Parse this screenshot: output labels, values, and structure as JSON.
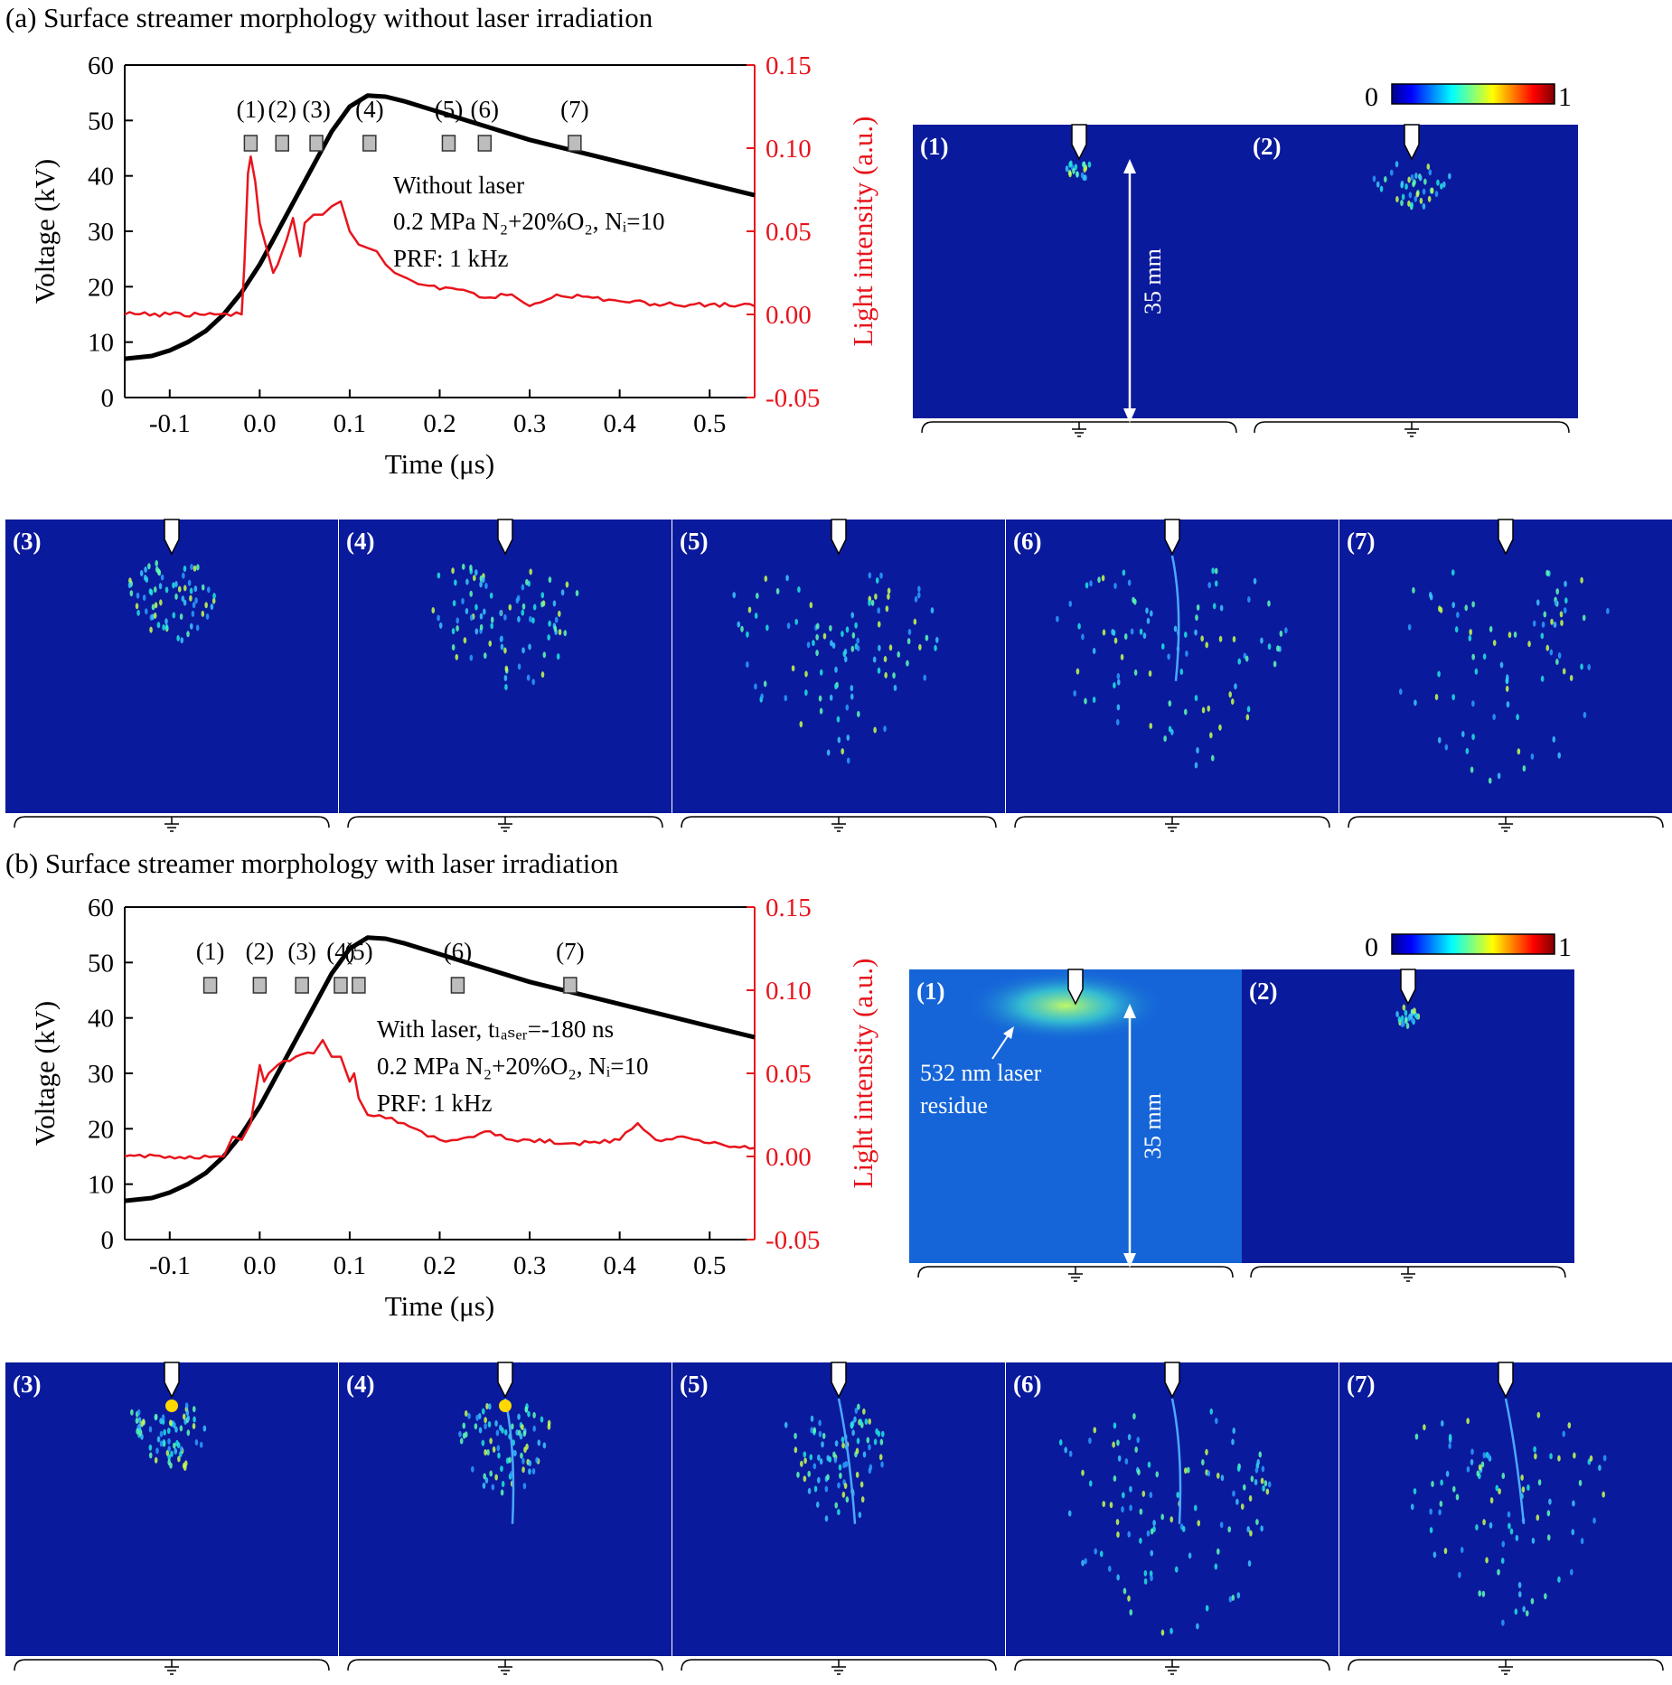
{
  "colors": {
    "voltage": "#000000",
    "light": "#e8141c",
    "frame_bg": "#0a1a9c",
    "laser_bg": "#1565d8"
  },
  "colorbar": {
    "min": "0",
    "max": "1"
  },
  "marker_labels": [
    "(1)",
    "(2)",
    "(3)",
    "(4)",
    "(5)",
    "(6)",
    "(7)"
  ],
  "frame_labels": [
    "(1)",
    "(2)",
    "(3)",
    "(4)",
    "(5)",
    "(6)",
    "(7)"
  ],
  "scale_label": "35 mm",
  "laser_annotation": [
    "532 nm laser",
    "residue"
  ],
  "panels": [
    {
      "title": "(a) Surface streamer morphology without laser irradiation",
      "notes": [
        "Without laser",
        "0.2 MPa N₂+20%O₂, Nᵢ=10",
        "PRF: 1 kHz"
      ]
    },
    {
      "title": "(b) Surface streamer morphology with laser irradiation",
      "notes": [
        "With laser, tₗₐₛₑᵣ=-180 ns",
        "0.2 MPa N₂+20%O₂, Nᵢ=10",
        "PRF: 1 kHz"
      ]
    }
  ],
  "chart_data": [
    {
      "type": "line",
      "title": "(a) Surface streamer morphology without laser irradiation",
      "xlabel": "Time (μs)",
      "ylabel": "Voltage (kV)",
      "y2label": "Light intensity (a.u.)",
      "xlim": [
        -0.15,
        0.55
      ],
      "ylim": [
        0,
        60
      ],
      "y2lim": [
        -0.05,
        0.15
      ],
      "xticks": [
        "-0.1",
        "0.0",
        "0.1",
        "0.2",
        "0.3",
        "0.4",
        "0.5"
      ],
      "yticks": [
        "0",
        "10",
        "20",
        "30",
        "40",
        "50",
        "60"
      ],
      "y2ticks": [
        "-0.05",
        "0.00",
        "0.05",
        "0.10",
        "0.15"
      ],
      "frame_times": [
        -0.01,
        0.025,
        0.063,
        0.122,
        0.21,
        0.25,
        0.35
      ],
      "series": [
        {
          "axis": "left",
          "x": [
            -0.15,
            -0.12,
            -0.1,
            -0.08,
            -0.06,
            -0.04,
            -0.02,
            0.0,
            0.02,
            0.04,
            0.06,
            0.08,
            0.1,
            0.12,
            0.14,
            0.16,
            0.2,
            0.25,
            0.3,
            0.35,
            0.4,
            0.45,
            0.5,
            0.55
          ],
          "y": [
            7,
            7.5,
            8.5,
            10,
            12,
            15,
            19,
            24,
            30,
            36,
            42,
            48,
            52.5,
            54.5,
            54.3,
            53.5,
            51.5,
            49,
            46.5,
            44.5,
            42.5,
            40.5,
            38.5,
            36.5
          ]
        },
        {
          "axis": "right",
          "x": [
            -0.15,
            -0.1,
            -0.05,
            -0.02,
            -0.017,
            -0.013,
            -0.01,
            -0.005,
            0.0,
            0.01,
            0.015,
            0.02,
            0.03,
            0.037,
            0.045,
            0.05,
            0.06,
            0.07,
            0.08,
            0.09,
            0.1,
            0.11,
            0.12,
            0.13,
            0.14,
            0.15,
            0.17,
            0.2,
            0.22,
            0.25,
            0.28,
            0.3,
            0.33,
            0.37,
            0.4,
            0.45,
            0.5,
            0.55
          ],
          "y": [
            0.0,
            0.0,
            0.0,
            0.0,
            0.03,
            0.085,
            0.095,
            0.08,
            0.055,
            0.035,
            0.025,
            0.03,
            0.045,
            0.058,
            0.035,
            0.055,
            0.06,
            0.06,
            0.065,
            0.068,
            0.05,
            0.042,
            0.04,
            0.038,
            0.03,
            0.025,
            0.02,
            0.015,
            0.015,
            0.01,
            0.012,
            0.005,
            0.012,
            0.01,
            0.008,
            0.006,
            0.006,
            0.005
          ]
        }
      ]
    },
    {
      "type": "line",
      "title": "(b) Surface streamer morphology with laser irradiation",
      "xlabel": "Time (μs)",
      "ylabel": "Voltage (kV)",
      "y2label": "Light intensity (a.u.)",
      "xlim": [
        -0.15,
        0.55
      ],
      "ylim": [
        0,
        60
      ],
      "y2lim": [
        -0.05,
        0.15
      ],
      "xticks": [
        "-0.1",
        "0.0",
        "0.1",
        "0.2",
        "0.3",
        "0.4",
        "0.5"
      ],
      "yticks": [
        "0",
        "10",
        "20",
        "30",
        "40",
        "50",
        "60"
      ],
      "y2ticks": [
        "-0.05",
        "0.00",
        "0.05",
        "0.10",
        "0.15"
      ],
      "frame_times": [
        -0.055,
        0.0,
        0.047,
        0.09,
        0.11,
        0.22,
        0.345
      ],
      "series": [
        {
          "axis": "left",
          "x": [
            -0.15,
            -0.12,
            -0.1,
            -0.08,
            -0.06,
            -0.04,
            -0.02,
            0.0,
            0.02,
            0.04,
            0.06,
            0.08,
            0.1,
            0.12,
            0.14,
            0.16,
            0.2,
            0.25,
            0.3,
            0.35,
            0.4,
            0.45,
            0.5,
            0.55
          ],
          "y": [
            7,
            7.5,
            8.5,
            10,
            12,
            15,
            19,
            24,
            30,
            36,
            42,
            48,
            52.5,
            54.5,
            54.3,
            53.5,
            51.5,
            49,
            46.5,
            44.5,
            42.5,
            40.5,
            38.5,
            36.5
          ]
        },
        {
          "axis": "right",
          "x": [
            -0.15,
            -0.1,
            -0.05,
            -0.04,
            -0.03,
            -0.02,
            -0.01,
            0.0,
            0.005,
            0.01,
            0.02,
            0.04,
            0.06,
            0.07,
            0.08,
            0.09,
            0.1,
            0.105,
            0.11,
            0.12,
            0.14,
            0.16,
            0.18,
            0.2,
            0.22,
            0.25,
            0.28,
            0.3,
            0.35,
            0.4,
            0.42,
            0.44,
            0.47,
            0.5,
            0.55
          ],
          "y": [
            0.0,
            0.0,
            0.0,
            0.0,
            0.012,
            0.01,
            0.02,
            0.055,
            0.045,
            0.05,
            0.055,
            0.06,
            0.062,
            0.07,
            0.06,
            0.06,
            0.045,
            0.05,
            0.035,
            0.025,
            0.023,
            0.02,
            0.015,
            0.01,
            0.01,
            0.015,
            0.01,
            0.01,
            0.008,
            0.01,
            0.02,
            0.01,
            0.012,
            0.008,
            0.005
          ]
        }
      ]
    }
  ]
}
